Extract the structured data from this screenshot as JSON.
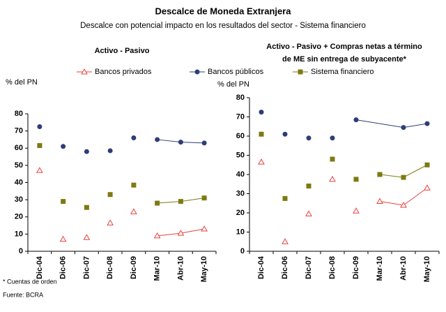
{
  "title": "Descalce de Moneda Extranjera",
  "subtitle": "Descalce con potencial impacto en los resultados del sector - Sistema financiero",
  "footnotes": [
    "* Cuentas de orden",
    "Fuente: BCRA"
  ],
  "chart_data": [
    {
      "type": "line",
      "title": [
        "Activo - Pasivo"
      ],
      "ylabel": "% del PN",
      "categories": [
        "Dic-04",
        "Dic-06",
        "Dic-07",
        "Dic-08",
        "Dic-09",
        "Mar-10",
        "Abr-10",
        "May-10"
      ],
      "ylim": [
        0,
        80
      ],
      "yticks": [
        0,
        10,
        20,
        30,
        40,
        50,
        60,
        70,
        80
      ],
      "series": [
        {
          "name": "Bancos privados",
          "color": "#e8413b",
          "marker": "triangle",
          "line_from": 5,
          "values": [
            47,
            7,
            8,
            16.5,
            23,
            9,
            10.5,
            13
          ]
        },
        {
          "name": "Bancos públicos",
          "color": "#2e3d78",
          "marker": "circle",
          "line_from": 5,
          "values": [
            72.5,
            61,
            58,
            58.5,
            66,
            65,
            63.5,
            63
          ]
        },
        {
          "name": "Sistema financiero",
          "color": "#7d7a12",
          "marker": "square",
          "line_from": 5,
          "values": [
            61.5,
            29,
            25.5,
            33,
            38.5,
            28,
            29,
            31
          ]
        }
      ]
    },
    {
      "type": "line",
      "title": [
        "Activo - Pasivo + Compras netas a término",
        "de ME sin entrega de subyacente*"
      ],
      "ylabel": "% del PN",
      "categories": [
        "Dic-04",
        "Dic-06",
        "Dic-07",
        "Dic-08",
        "Dic-09",
        "Mar-10",
        "Abr-10",
        "May-10"
      ],
      "ylim": [
        0,
        80
      ],
      "yticks": [
        0,
        10,
        20,
        30,
        40,
        50,
        60,
        70,
        80
      ],
      "series": [
        {
          "name": "Bancos privados",
          "color": "#e8413b",
          "marker": "triangle",
          "line_from": 5,
          "values": [
            46.5,
            5,
            19.5,
            37.5,
            21,
            26,
            24,
            33
          ]
        },
        {
          "name": "Bancos públicos",
          "color": "#2e3d78",
          "marker": "circle",
          "line_from": 4,
          "values": [
            72.5,
            61,
            59,
            59,
            68.5,
            null,
            64.5,
            66.5
          ]
        },
        {
          "name": "Sistema financiero",
          "color": "#7d7a12",
          "marker": "square",
          "line_from": 5,
          "values": [
            61,
            27.5,
            34,
            48,
            37.5,
            40,
            38.5,
            45
          ]
        }
      ]
    }
  ]
}
